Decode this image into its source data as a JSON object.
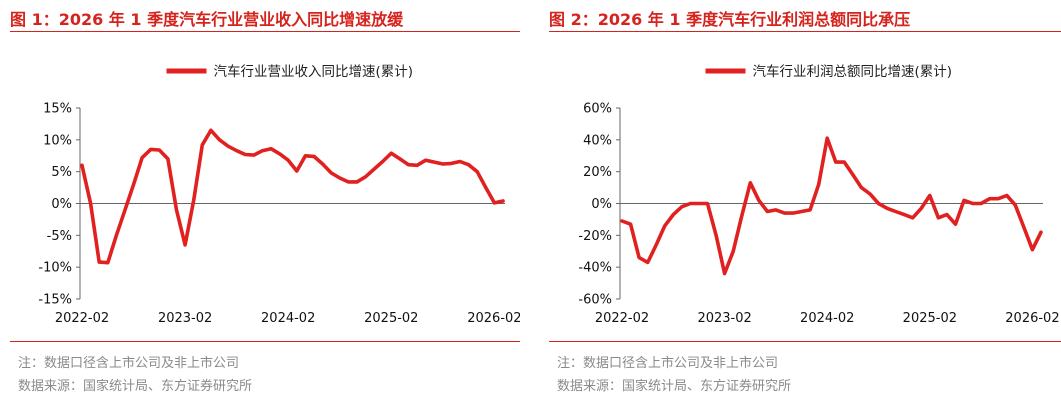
{
  "charts": [
    {
      "title": "图 1：2026 年 1 季度汽车行业营业收入同比增速放缓",
      "note": "注：数据口径含上市公司及非上市公司",
      "source": "数据来源：国家统计局、东方证券研究所",
      "color": "#e12020",
      "chart_data": {
        "type": "line",
        "legend": "top-center",
        "grid": false,
        "ylim": [
          -15,
          15
        ],
        "yticks": [
          15,
          10,
          5,
          0,
          -5,
          -10,
          -15
        ],
        "ytick_labels": [
          "15%",
          "10%",
          "5%",
          "0%",
          "-5%",
          "-10%",
          "-15%"
        ],
        "xtick_labels": [
          "2022-02",
          "2023-02",
          "2024-02",
          "2025-02",
          "2026-02"
        ],
        "xtick_index": [
          0,
          12,
          24,
          36,
          48
        ],
        "series": [
          {
            "name": "汽车行业营业收入同比增速(累计)",
            "values": [
              6.0,
              0.0,
              -9.2,
              -9.3,
              -5.0,
              -1.0,
              3.0,
              7.2,
              8.5,
              8.4,
              7.0,
              -1.0,
              -6.5,
              0.5,
              9.2,
              11.5,
              10.0,
              9.0,
              8.3,
              7.7,
              7.6,
              8.3,
              8.6,
              7.8,
              6.8,
              5.1,
              7.5,
              7.4,
              6.2,
              4.8,
              4.0,
              3.4,
              3.4,
              4.2,
              5.4,
              6.6,
              7.9,
              7.0,
              6.1,
              6.0,
              6.8,
              6.5,
              6.2,
              6.3,
              6.6,
              6.1,
              5.0,
              2.5,
              0.1,
              0.4
            ]
          }
        ]
      }
    },
    {
      "title": "图 2：2026 年 1 季度汽车行业利润总额同比承压",
      "note": "注：数据口径含上市公司及非上市公司",
      "source": "数据来源：国家统计局、东方证券研究所",
      "color": "#e12020",
      "chart_data": {
        "type": "line",
        "legend": "top-center",
        "grid": false,
        "ylim": [
          -60,
          60
        ],
        "yticks": [
          60,
          40,
          20,
          0,
          -20,
          -40,
          -60
        ],
        "ytick_labels": [
          "60%",
          "40%",
          "20%",
          "0%",
          "-20%",
          "-40%",
          "-60%"
        ],
        "xtick_labels": [
          "2022-02",
          "2023-02",
          "2024-02",
          "2025-02",
          "2026-02"
        ],
        "xtick_index": [
          0,
          12,
          24,
          36,
          48
        ],
        "series": [
          {
            "name": "汽车行业利润总额同比增速(累计)",
            "values": [
              -11,
              -13,
              -34,
              -37,
              -26,
              -14,
              -7,
              -2,
              0,
              0,
              0,
              -20,
              -44,
              -30,
              -8,
              13,
              2,
              -5,
              -4,
              -6,
              -6,
              -5,
              -4,
              12,
              41,
              26,
              26,
              18,
              10,
              6,
              0,
              -3,
              -5,
              -7,
              -9,
              -3,
              5,
              -9,
              -7,
              -13,
              2,
              0,
              0,
              3,
              3,
              5,
              -1,
              -15,
              -29,
              -18
            ]
          }
        ]
      }
    }
  ]
}
